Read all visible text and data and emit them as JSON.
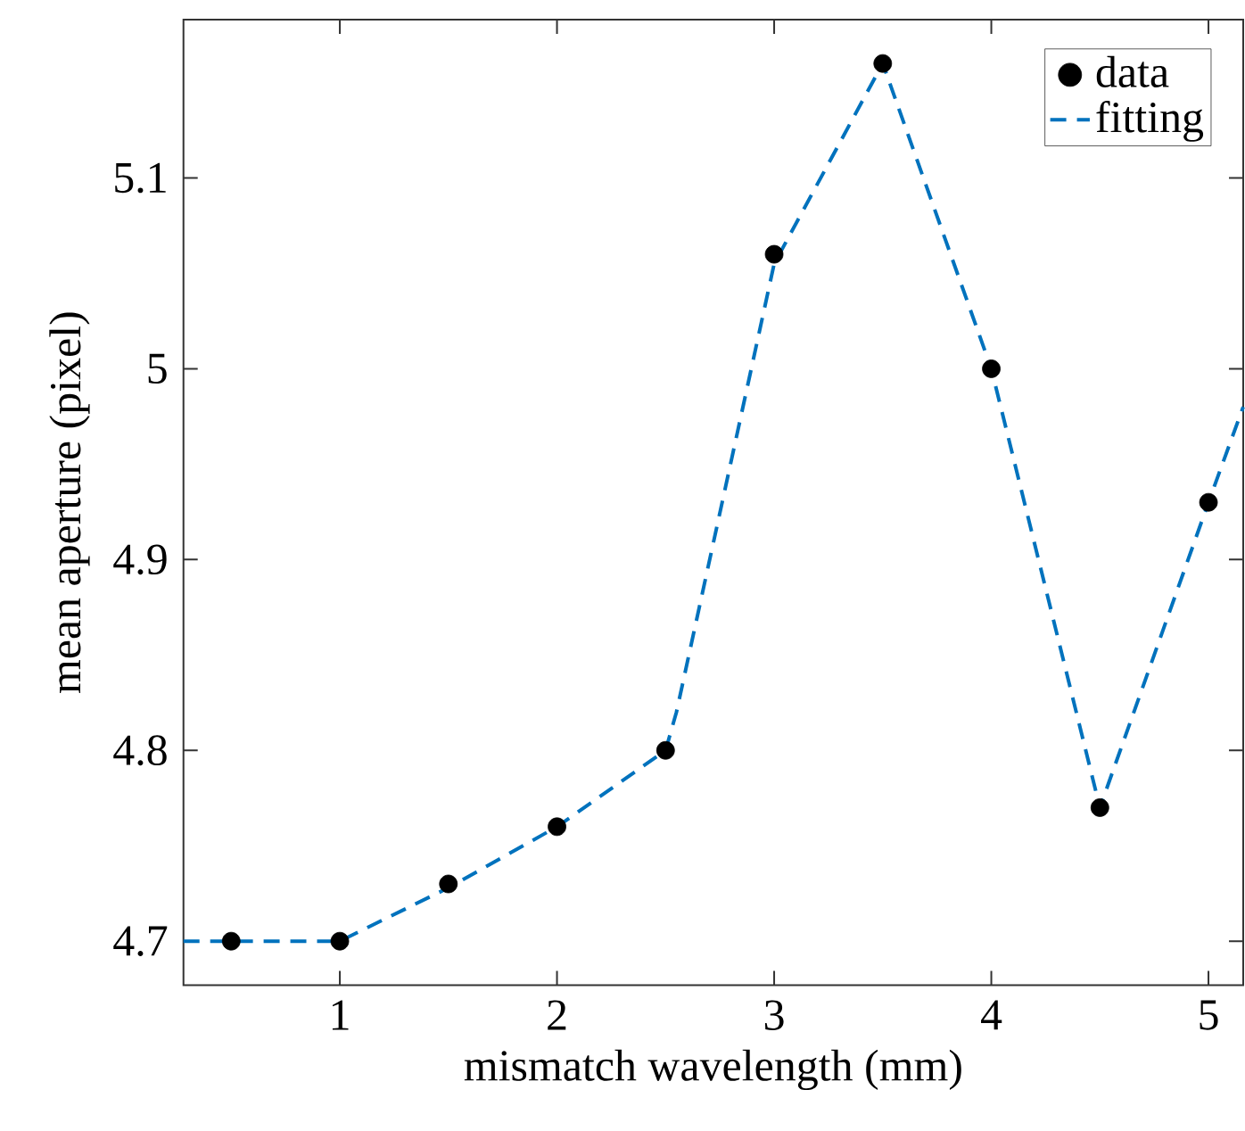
{
  "chart_data": {
    "type": "scatter",
    "xlabel": "mismatch wavelength (mm)",
    "ylabel": "mean aperture (pixel)",
    "xlim": [
      0.28,
      5.16
    ],
    "ylim": [
      4.677,
      5.183
    ],
    "xticks": [
      1,
      2,
      3,
      4,
      5
    ],
    "yticks": [
      4.7,
      4.8,
      4.9,
      5,
      5.1
    ],
    "legend": "top right",
    "grid": false,
    "series": [
      {
        "name": "data",
        "color": "#000000",
        "marker": "circle",
        "x": [
          0.5,
          1,
          1.5,
          2,
          2.5,
          3,
          3.5,
          4,
          4.5,
          5
        ],
        "values": [
          4.7,
          4.7,
          4.73,
          4.76,
          4.8,
          5.06,
          5.16,
          5.0,
          4.77,
          4.93
        ]
      },
      {
        "name": "fitting",
        "type": "line",
        "color": "#0072bd",
        "line_style": "dashed",
        "marker": "none",
        "x": [
          0.28,
          0.5,
          1,
          1.5,
          2,
          2.5,
          2.55,
          3,
          3.5,
          4,
          4.5,
          5,
          5.16
        ],
        "values": [
          4.7,
          4.7,
          4.7,
          4.728,
          4.76,
          4.8,
          4.82,
          5.055,
          5.16,
          5.0,
          4.77,
          4.93,
          4.98
        ]
      }
    ]
  }
}
